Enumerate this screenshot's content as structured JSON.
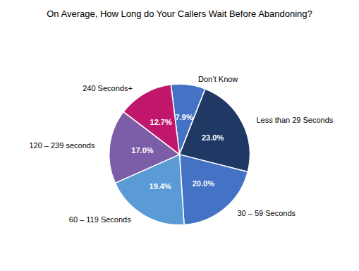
{
  "chart_data": {
    "type": "pie",
    "title": "On Average, How Long do Your Callers Wait Before Abandoning?",
    "categories": [
      "Don’t Know",
      "Less than 29 Seconds",
      "30 – 59 Seconds",
      "60 – 119 Seconds",
      "120 – 239 seconds",
      "240 Seconds+"
    ],
    "values": [
      7.9,
      23.0,
      20.0,
      19.4,
      17.0,
      12.7
    ],
    "value_labels": [
      "7.9%",
      "23.0%",
      "20.0%",
      "19.4%",
      "17.0%",
      "12.7%"
    ],
    "colors": [
      "#4472c4",
      "#1f3864",
      "#4472c4",
      "#5b9bd5",
      "#7b5ea7",
      "#c0176c"
    ],
    "data_labels": true
  }
}
